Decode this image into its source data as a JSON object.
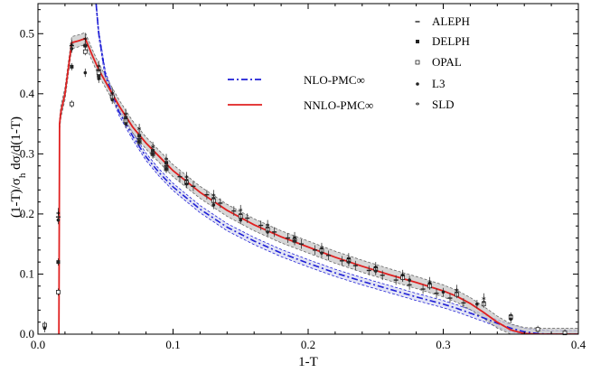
{
  "chart_data": {
    "type": "line",
    "title": "",
    "xlabel": "1-T",
    "ylabel": "(1-T)/σ_h dσ/d(1-T)",
    "xlim": [
      0.0,
      0.4
    ],
    "ylim": [
      0.0,
      0.55
    ],
    "x_ticks": [
      0.0,
      0.1,
      0.2,
      0.3,
      0.4
    ],
    "x_tick_labels": [
      "0.0",
      "0.1",
      "0.2",
      "0.3",
      "0.4"
    ],
    "y_ticks": [
      0.0,
      0.1,
      0.2,
      0.3,
      0.4,
      0.5
    ],
    "y_tick_labels": [
      "0.0",
      "0.1",
      "0.2",
      "0.3",
      "0.4",
      "0.5"
    ],
    "grid": false,
    "colors": {
      "nlo": "#1f1fd6",
      "nnlo": "#e02020",
      "band": "#c8c8c8",
      "data": "#222222"
    },
    "series": [
      {
        "name": "NLO-PMC∞",
        "style": "dash-dot",
        "x": [
          0.043,
          0.045,
          0.05,
          0.06,
          0.07,
          0.08,
          0.09,
          0.1,
          0.12,
          0.14,
          0.16,
          0.18,
          0.2,
          0.22,
          0.24,
          0.26,
          0.28,
          0.3,
          0.31,
          0.32,
          0.33,
          0.34,
          0.35,
          0.36,
          0.37,
          0.38,
          0.39,
          0.4
        ],
        "values": [
          0.55,
          0.5,
          0.43,
          0.37,
          0.33,
          0.295,
          0.268,
          0.245,
          0.208,
          0.178,
          0.155,
          0.135,
          0.118,
          0.102,
          0.088,
          0.075,
          0.062,
          0.05,
          0.043,
          0.035,
          0.027,
          0.018,
          0.01,
          0.004,
          0.001,
          0.0,
          0.0,
          0.0
        ],
        "band": 0.006
      },
      {
        "name": "NNLO-PMC∞",
        "style": "solid",
        "x": [
          0.0155,
          0.016,
          0.017,
          0.02,
          0.025,
          0.03,
          0.035,
          0.04,
          0.045,
          0.05,
          0.06,
          0.07,
          0.08,
          0.09,
          0.1,
          0.12,
          0.14,
          0.16,
          0.18,
          0.2,
          0.22,
          0.24,
          0.26,
          0.28,
          0.3,
          0.31,
          0.32,
          0.33,
          0.34,
          0.35,
          0.36,
          0.37,
          0.38,
          0.39,
          0.4
        ],
        "values": [
          0.0,
          0.35,
          0.37,
          0.4,
          0.485,
          0.488,
          0.492,
          0.465,
          0.44,
          0.42,
          0.38,
          0.345,
          0.318,
          0.295,
          0.272,
          0.236,
          0.206,
          0.182,
          0.162,
          0.145,
          0.128,
          0.113,
          0.099,
          0.086,
          0.072,
          0.063,
          0.051,
          0.036,
          0.02,
          0.007,
          0.001,
          0.0,
          0.0,
          0.0,
          0.0
        ],
        "band": 0.01
      }
    ],
    "data_points": [
      {
        "name": "ALEPH",
        "marker": "dash",
        "x": [
          0.015,
          0.025,
          0.035,
          0.045,
          0.055,
          0.065,
          0.075,
          0.085,
          0.095,
          0.105,
          0.115,
          0.125,
          0.135,
          0.145,
          0.155,
          0.165,
          0.175,
          0.185,
          0.195,
          0.205,
          0.215,
          0.225,
          0.235,
          0.245,
          0.255,
          0.265,
          0.275,
          0.285,
          0.295,
          0.305,
          0.315
        ],
        "values": [
          0.195,
          0.48,
          0.48,
          0.44,
          0.395,
          0.355,
          0.325,
          0.3,
          0.28,
          0.262,
          0.246,
          0.232,
          0.218,
          0.205,
          0.193,
          0.181,
          0.17,
          0.16,
          0.15,
          0.14,
          0.131,
          0.122,
          0.114,
          0.106,
          0.098,
          0.09,
          0.082,
          0.075,
          0.068,
          0.06,
          0.052
        ],
        "err": 0.008
      },
      {
        "name": "DELPH",
        "marker": "square",
        "x": [
          0.015,
          0.025,
          0.035,
          0.045,
          0.055,
          0.065,
          0.075,
          0.085,
          0.095,
          0.11,
          0.13,
          0.15,
          0.17,
          0.19,
          0.21,
          0.23,
          0.25,
          0.27,
          0.29,
          0.31,
          0.33,
          0.35
        ],
        "values": [
          0.12,
          0.445,
          0.48,
          0.43,
          0.395,
          0.36,
          0.33,
          0.305,
          0.285,
          0.255,
          0.225,
          0.198,
          0.176,
          0.158,
          0.14,
          0.124,
          0.11,
          0.097,
          0.083,
          0.068,
          0.052,
          0.03
        ],
        "err": 0.006
      },
      {
        "name": "OPAL",
        "marker": "open-square",
        "x": [
          0.005,
          0.015,
          0.025,
          0.035,
          0.045,
          0.055,
          0.065,
          0.075,
          0.085,
          0.095,
          0.11,
          0.13,
          0.15,
          0.17,
          0.19,
          0.21,
          0.23,
          0.25,
          0.27,
          0.29,
          0.31,
          0.33,
          0.35,
          0.37,
          0.39
        ],
        "values": [
          0.015,
          0.07,
          0.383,
          0.47,
          0.435,
          0.395,
          0.355,
          0.32,
          0.3,
          0.275,
          0.252,
          0.222,
          0.196,
          0.174,
          0.156,
          0.139,
          0.122,
          0.108,
          0.094,
          0.08,
          0.066,
          0.05,
          0.028,
          0.008,
          0.002
        ],
        "err": 0.006
      },
      {
        "name": "L3",
        "marker": "dot",
        "x": [
          0.005,
          0.015,
          0.025,
          0.035,
          0.045,
          0.055,
          0.065,
          0.075,
          0.085,
          0.095,
          0.11,
          0.13,
          0.15,
          0.17,
          0.19,
          0.21,
          0.23,
          0.25,
          0.275,
          0.3,
          0.325,
          0.35
        ],
        "values": [
          0.01,
          0.19,
          0.475,
          0.435,
          0.425,
          0.39,
          0.35,
          0.32,
          0.3,
          0.275,
          0.25,
          0.215,
          0.19,
          0.17,
          0.155,
          0.135,
          0.12,
          0.105,
          0.09,
          0.07,
          0.05,
          0.025
        ],
        "err": 0.007
      },
      {
        "name": "SLD",
        "marker": "star",
        "x": [
          0.015,
          0.025,
          0.035,
          0.045,
          0.055,
          0.065,
          0.075,
          0.085,
          0.095,
          0.11,
          0.13,
          0.15,
          0.17,
          0.19,
          0.21,
          0.23,
          0.25,
          0.27,
          0.29,
          0.31,
          0.33
        ],
        "values": [
          0.2,
          0.48,
          0.49,
          0.445,
          0.4,
          0.365,
          0.34,
          0.31,
          0.29,
          0.26,
          0.23,
          0.205,
          0.18,
          0.16,
          0.142,
          0.125,
          0.11,
          0.097,
          0.085,
          0.072,
          0.058
        ],
        "err": 0.01
      }
    ],
    "legend": {
      "placement": "top-right",
      "lines": [
        {
          "label": "NLO-PMC∞",
          "series": 0
        },
        {
          "label": "NNLO-PMC∞",
          "series": 1
        }
      ],
      "markers": [
        {
          "label": "ALEPH",
          "marker": "dash"
        },
        {
          "label": "DELPH",
          "marker": "square"
        },
        {
          "label": "OPAL",
          "marker": "open-square"
        },
        {
          "label": "L3",
          "marker": "dot"
        },
        {
          "label": "SLD",
          "marker": "star"
        }
      ]
    }
  }
}
